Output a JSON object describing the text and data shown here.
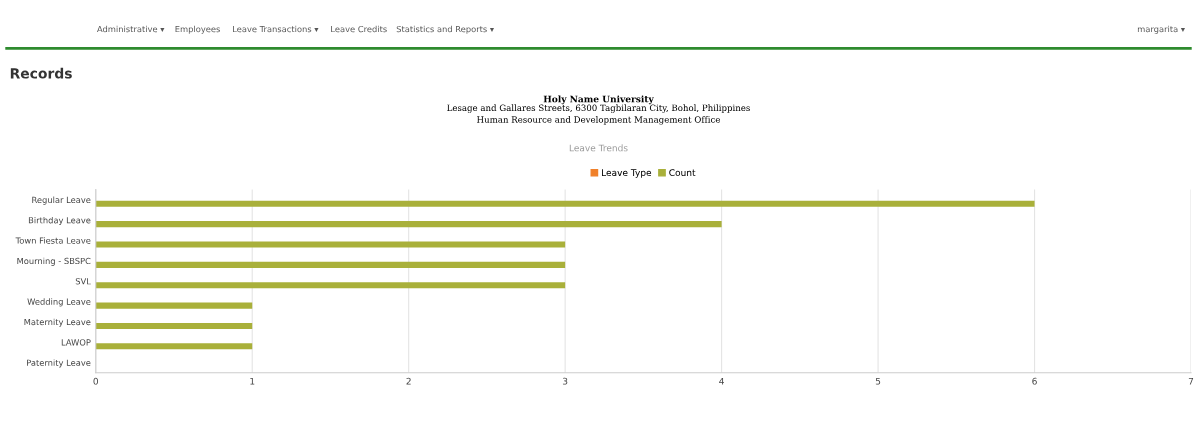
{
  "chart_data": {
    "type": "bar",
    "orientation": "horizontal",
    "title": "Leave Trends",
    "subtitle": "Holy Name University\nLesage and Gallares Streets, 6300 Tagbilaran City, Bohol, Philippines\nHuman Resource and Development Management Office",
    "annotations": [
      "Administrative ▾",
      "Employees",
      "Leave Transactions ▾",
      "Leave Credits",
      "Statistics and Reports ▾",
      "margarita ▾",
      "Records"
    ],
    "categories": [
      "Regular Leave",
      "Birthday Leave",
      "Town Fiesta Leave",
      "Mourning - SBSPC",
      "SVL",
      "Wedding Leave",
      "Maternity Leave",
      "LAWOP",
      "Paternity Leave"
    ],
    "series": [
      {
        "name": "Leave Type",
        "color": "#f0802a",
        "values": [
          null,
          null,
          null,
          null,
          null,
          null,
          null,
          null,
          null
        ]
      },
      {
        "name": "Count",
        "color": "#a9b03a",
        "values": [
          6,
          4,
          3,
          3,
          3,
          1,
          1,
          1,
          0
        ]
      }
    ],
    "xlim": [
      0,
      7
    ],
    "xticks": [
      0,
      1,
      2,
      3,
      4,
      5,
      6,
      7
    ],
    "grid": "x",
    "legend": "top"
  }
}
